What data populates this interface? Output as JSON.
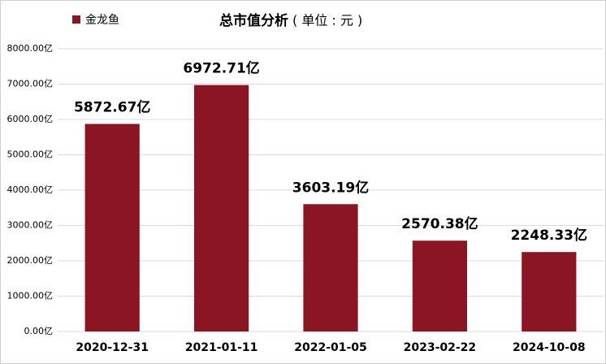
{
  "chart_data": {
    "type": "bar",
    "title": "总市值分析",
    "subtitle": "( 单位 : 元 )",
    "legend": "金龙鱼",
    "color": "#8b1522",
    "categories": [
      "2020-12-31",
      "2021-01-11",
      "2022-01-05",
      "2023-02-22",
      "2024-10-08"
    ],
    "values": [
      5872.67,
      6972.71,
      3603.19,
      2570.38,
      2248.33
    ],
    "value_labels": [
      "5872.67亿",
      "6972.71亿",
      "3603.19亿",
      "2570.38亿",
      "2248.33亿"
    ],
    "ylim": [
      0,
      8000
    ],
    "yticks": [
      {
        "value": 0,
        "label": "0.00亿"
      },
      {
        "value": 1000,
        "label": "1000.00亿"
      },
      {
        "value": 2000,
        "label": "2000.00亿"
      },
      {
        "value": 3000,
        "label": "3000.00亿"
      },
      {
        "value": 4000,
        "label": "4000.00亿"
      },
      {
        "value": 5000,
        "label": "5000.00亿"
      },
      {
        "value": 6000,
        "label": "6000.00亿"
      },
      {
        "value": 7000,
        "label": "7000.00亿"
      },
      {
        "value": 8000,
        "label": "8000.00亿"
      }
    ],
    "grid": true
  }
}
